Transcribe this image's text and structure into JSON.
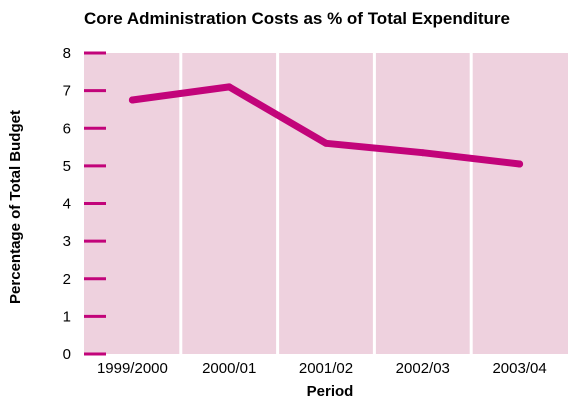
{
  "chart_data": {
    "type": "line",
    "title": "Core Administration Costs as % of Total Expenditure",
    "xlabel": "Period",
    "ylabel": "Percentage of Total Budget",
    "categories": [
      "1999/2000",
      "2000/01",
      "2001/02",
      "2002/03",
      "2003/04"
    ],
    "y_ticks": [
      "0",
      "1",
      "2",
      "3",
      "4",
      "5",
      "6",
      "7",
      "8"
    ],
    "ylim": [
      0,
      8
    ],
    "grid": "vertical",
    "legend": "none",
    "series": [
      {
        "values": [
          6.75,
          7.1,
          5.6,
          5.35,
          5.05
        ],
        "color": "#c2047a"
      }
    ],
    "colors": {
      "plot_background": "#eed1de",
      "gridline": "#ffffff",
      "tick_marks": "#c2047a",
      "line": "#c2047a"
    }
  }
}
